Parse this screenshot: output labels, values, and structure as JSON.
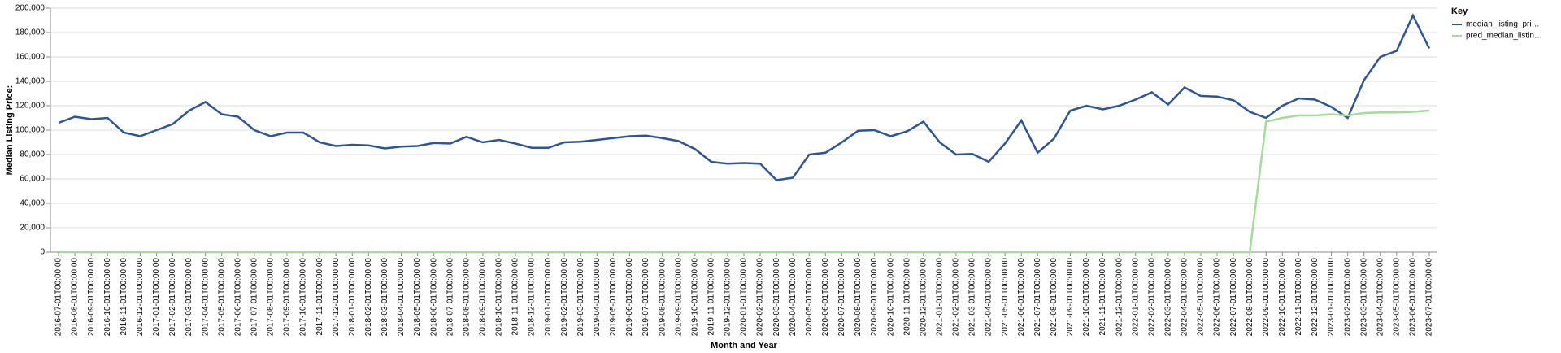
{
  "chart_data": {
    "type": "line",
    "x_label": "Month and Year",
    "y_label": "Median Listing Price:",
    "legend_title": "Key",
    "legend_position": "right",
    "grid": true,
    "categories": [
      "2016-07-01T00:00:00",
      "2016-08-01T00:00:00",
      "2016-09-01T00:00:00",
      "2016-10-01T00:00:00",
      "2016-11-01T00:00:00",
      "2016-12-01T00:00:00",
      "2017-01-01T00:00:00",
      "2017-02-01T00:00:00",
      "2017-03-01T00:00:00",
      "2017-04-01T00:00:00",
      "2017-05-01T00:00:00",
      "2017-06-01T00:00:00",
      "2017-07-01T00:00:00",
      "2017-08-01T00:00:00",
      "2017-09-01T00:00:00",
      "2017-10-01T00:00:00",
      "2017-11-01T00:00:00",
      "2017-12-01T00:00:00",
      "2018-01-01T00:00:00",
      "2018-02-01T00:00:00",
      "2018-03-01T00:00:00",
      "2018-04-01T00:00:00",
      "2018-05-01T00:00:00",
      "2018-06-01T00:00:00",
      "2018-07-01T00:00:00",
      "2018-08-01T00:00:00",
      "2018-09-01T00:00:00",
      "2018-10-01T00:00:00",
      "2018-11-01T00:00:00",
      "2018-12-01T00:00:00",
      "2019-01-01T00:00:00",
      "2019-02-01T00:00:00",
      "2019-03-01T00:00:00",
      "2019-04-01T00:00:00",
      "2019-05-01T00:00:00",
      "2019-06-01T00:00:00",
      "2019-07-01T00:00:00",
      "2019-08-01T00:00:00",
      "2019-09-01T00:00:00",
      "2019-10-01T00:00:00",
      "2019-11-01T00:00:00",
      "2019-12-01T00:00:00",
      "2020-01-01T00:00:00",
      "2020-02-01T00:00:00",
      "2020-03-01T00:00:00",
      "2020-04-01T00:00:00",
      "2020-05-01T00:00:00",
      "2020-06-01T00:00:00",
      "2020-07-01T00:00:00",
      "2020-08-01T00:00:00",
      "2020-09-01T00:00:00",
      "2020-10-01T00:00:00",
      "2020-11-01T00:00:00",
      "2020-12-01T00:00:00",
      "2021-01-01T00:00:00",
      "2021-02-01T00:00:00",
      "2021-03-01T00:00:00",
      "2021-04-01T00:00:00",
      "2021-05-01T00:00:00",
      "2021-06-01T00:00:00",
      "2021-07-01T00:00:00",
      "2021-08-01T00:00:00",
      "2021-09-01T00:00:00",
      "2021-10-01T00:00:00",
      "2021-11-01T00:00:00",
      "2021-12-01T00:00:00",
      "2022-01-01T00:00:00",
      "2022-02-01T00:00:00",
      "2022-03-01T00:00:00",
      "2022-04-01T00:00:00",
      "2022-05-01T00:00:00",
      "2022-06-01T00:00:00",
      "2022-07-01T00:00:00",
      "2022-08-01T00:00:00",
      "2022-09-01T00:00:00",
      "2022-10-01T00:00:00",
      "2022-11-01T00:00:00",
      "2022-12-01T00:00:00",
      "2023-01-01T00:00:00",
      "2023-02-01T00:00:00",
      "2023-03-01T00:00:00",
      "2023-04-01T00:00:00",
      "2023-05-01T00:00:00",
      "2023-06-01T00:00:00",
      "2023-07-01T00:00:00"
    ],
    "series": [
      {
        "name": "median_listing_pri…",
        "color": "#2c5599",
        "values": [
          106000,
          111000,
          109000,
          110000,
          98000,
          95000,
          100000,
          105000,
          116000,
          123000,
          113000,
          111000,
          100000,
          95000,
          98000,
          98000,
          90000,
          87000,
          88000,
          87500,
          85000,
          86500,
          87000,
          89500,
          89000,
          94500,
          90000,
          92000,
          89000,
          85500,
          85500,
          90000,
          90500,
          92000,
          93500,
          95000,
          95500,
          93500,
          91000,
          84500,
          74000,
          72500,
          73000,
          72500,
          59000,
          61000,
          80000,
          81500,
          90000,
          99500,
          100000,
          95000,
          99000,
          107000,
          90000,
          80000,
          80500,
          74000,
          89000,
          108000,
          81500,
          93000,
          116000,
          120000,
          117000,
          120000,
          125000,
          131000,
          121000,
          135000,
          128000,
          127500,
          124500,
          115000,
          110000,
          120000,
          126000,
          125000,
          119000,
          110000,
          141000,
          160000,
          165000,
          194000,
          167000
        ]
      },
      {
        "name": "pred_median_listin…",
        "color": "#a3dc98",
        "values": [
          0,
          0,
          0,
          0,
          0,
          0,
          0,
          0,
          0,
          0,
          0,
          0,
          0,
          0,
          0,
          0,
          0,
          0,
          0,
          0,
          0,
          0,
          0,
          0,
          0,
          0,
          0,
          0,
          0,
          0,
          0,
          0,
          0,
          0,
          0,
          0,
          0,
          0,
          0,
          0,
          0,
          0,
          0,
          0,
          0,
          0,
          0,
          0,
          0,
          0,
          0,
          0,
          0,
          0,
          0,
          0,
          0,
          0,
          0,
          0,
          0,
          0,
          0,
          0,
          0,
          0,
          0,
          0,
          0,
          0,
          0,
          0,
          0,
          0,
          107000,
          110000,
          112000,
          112000,
          113000,
          112000,
          114000,
          114500,
          114500,
          115000,
          116000
        ]
      }
    ],
    "ylim": [
      0,
      200000
    ],
    "yticks": [
      0,
      {
        "value": 20000,
        "label": "20,000"
      },
      {
        "value": 40000,
        "label": "40,000"
      },
      {
        "value": 60000,
        "label": "60,000"
      },
      {
        "value": 80000,
        "label": "80,000"
      },
      {
        "value": 100000,
        "label": "100,000"
      },
      {
        "value": 120000,
        "label": "120,000"
      },
      {
        "value": 140000,
        "label": "140,000"
      },
      {
        "value": 160000,
        "label": "160,000"
      },
      {
        "value": 180000,
        "label": "180,000"
      },
      {
        "value": 200000,
        "label": "200,000"
      }
    ]
  }
}
